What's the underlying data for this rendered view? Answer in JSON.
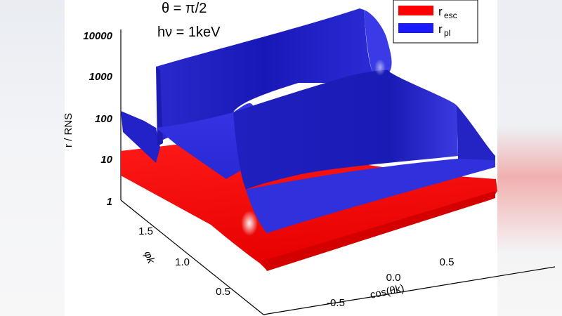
{
  "chart_data": {
    "type": "surface",
    "title_lines": [
      "θ = π/2",
      "hν = 1keV"
    ],
    "xlabel": "cos(θk)",
    "ylabel": "r / RNS",
    "zlabel": "φk",
    "x_ticks": [
      "-0.5",
      "0.0",
      "0.5"
    ],
    "y_ticks": [
      "1",
      "10",
      "100",
      "1000",
      "10000"
    ],
    "z_ticks": [
      "0.5",
      "1.0",
      "1.5"
    ],
    "y_scale": "log",
    "series": [
      {
        "name": "r_esc",
        "label_main": "r",
        "label_sub": "esc",
        "color": "#ff0000"
      },
      {
        "name": "r_pl",
        "label_main": "r",
        "label_sub": "pl",
        "color": "#1a1adf"
      }
    ],
    "legend_position": "top-right"
  }
}
